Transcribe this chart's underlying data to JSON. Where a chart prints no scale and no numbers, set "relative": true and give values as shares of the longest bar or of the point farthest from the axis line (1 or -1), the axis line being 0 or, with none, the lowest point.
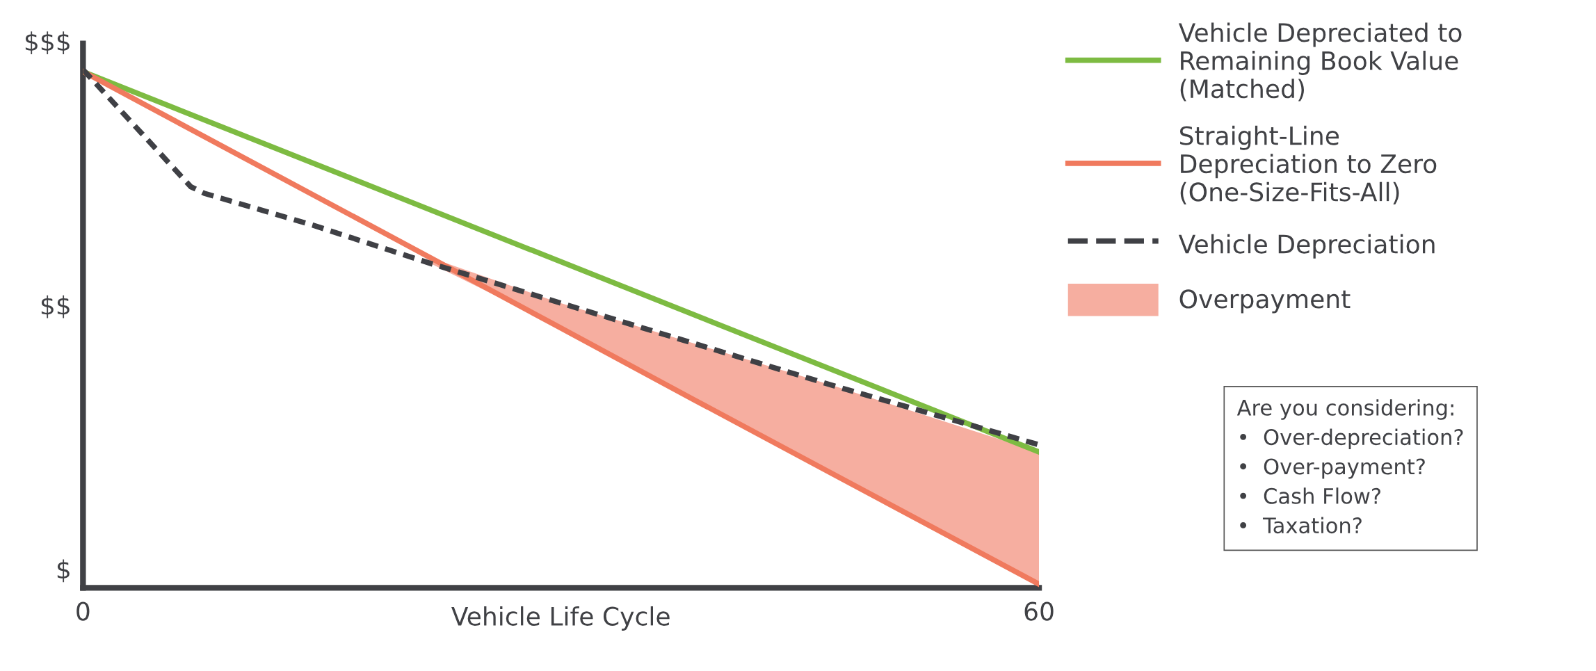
{
  "chart_data": {
    "type": "line",
    "relative": true,
    "xlabel": "Vehicle Life Cycle",
    "xlim": [
      0,
      60
    ],
    "xticks": [
      0,
      60
    ],
    "grid": false,
    "legend": "top right",
    "marker": "none",
    "series": [
      {
        "name": "Vehicle Depreciated to\nRemaining Book Value\n(Matched)",
        "color": "#7dbb42",
        "line_style": "solid",
        "x": [
          0,
          60
        ],
        "values": [
          0.996,
          0.262
        ]
      },
      {
        "name": "Straight-Line\nDepreciation to Zero\n(One-Size-Fits-All)",
        "color": "#f07a5e",
        "line_style": "solid",
        "x": [
          0,
          21.8,
          29.7,
          38.4,
          47.1,
          60
        ],
        "values": [
          0.996,
          0.637,
          0.506,
          0.362,
          0.219,
          0.007
        ]
      },
      {
        "name": "Vehicle Depreciation",
        "color": "#3f4045",
        "line_style": "dashed",
        "x": [
          0,
          6.76,
          7.63,
          14.4,
          21.8,
          29.7,
          38.4,
          47.1,
          60
        ],
        "values": [
          1,
          0.774,
          0.761,
          0.7,
          0.626,
          0.552,
          0.471,
          0.39,
          0.276
        ]
      },
      {
        "name": "Overpayment",
        "type": "area",
        "color": "#f6aea0",
        "x": [
          21.8,
          29.7,
          38.4,
          47.1,
          60
        ],
        "values": [
          0.637,
          0.552,
          0.471,
          0.39,
          0.262
        ]
      }
    ],
    "annotations": [
      "$",
      "$$",
      "$$$",
      "Are you considering:\n•  Over-depreciation?\n•  Over-payment?\n•  Cash Flow?\n•  Taxation?"
    ]
  }
}
